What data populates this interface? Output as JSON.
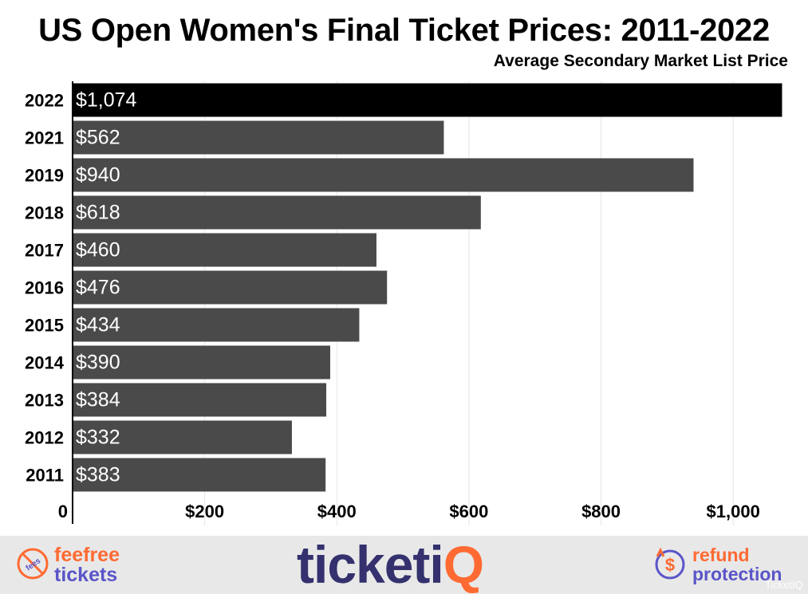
{
  "chart_data": {
    "type": "bar",
    "orientation": "horizontal",
    "title": "US Open Women's Final Ticket Prices: 2011-2022",
    "subtitle": "Average Secondary Market List Price",
    "categories": [
      "2022",
      "2021",
      "2019",
      "2018",
      "2017",
      "2016",
      "2015",
      "2014",
      "2013",
      "2012",
      "2011"
    ],
    "values": [
      1074,
      562,
      940,
      618,
      460,
      476,
      434,
      390,
      384,
      332,
      383
    ],
    "data_labels": [
      "$1,074",
      "$562",
      "$940",
      "$618",
      "$460",
      "$476",
      "$434",
      "$390",
      "$384",
      "$332",
      "$383"
    ],
    "xlim": [
      0,
      1100
    ],
    "x_ticks": [
      0,
      200,
      400,
      600,
      800,
      1000
    ],
    "x_tick_labels": [
      "0",
      "$200",
      "$400",
      "$600",
      "$800",
      "$1,000"
    ],
    "highlight_color": "#000000",
    "bar_color": "#4a4a4a",
    "grid": true
  },
  "footer": {
    "left_line1": "feefree",
    "left_line2": "tickets",
    "left_icon": "no-fees-icon",
    "left_icon_text": "fees",
    "logo_main": "ticketi",
    "logo_accent": "Q",
    "right_line1": "refund",
    "right_line2": "protection",
    "right_icon": "refund-dollar-icon",
    "watermark": "TicketIQ",
    "colors": {
      "orange": "#ff6a33",
      "purple": "#5a55c8",
      "navy": "#34316e"
    }
  }
}
